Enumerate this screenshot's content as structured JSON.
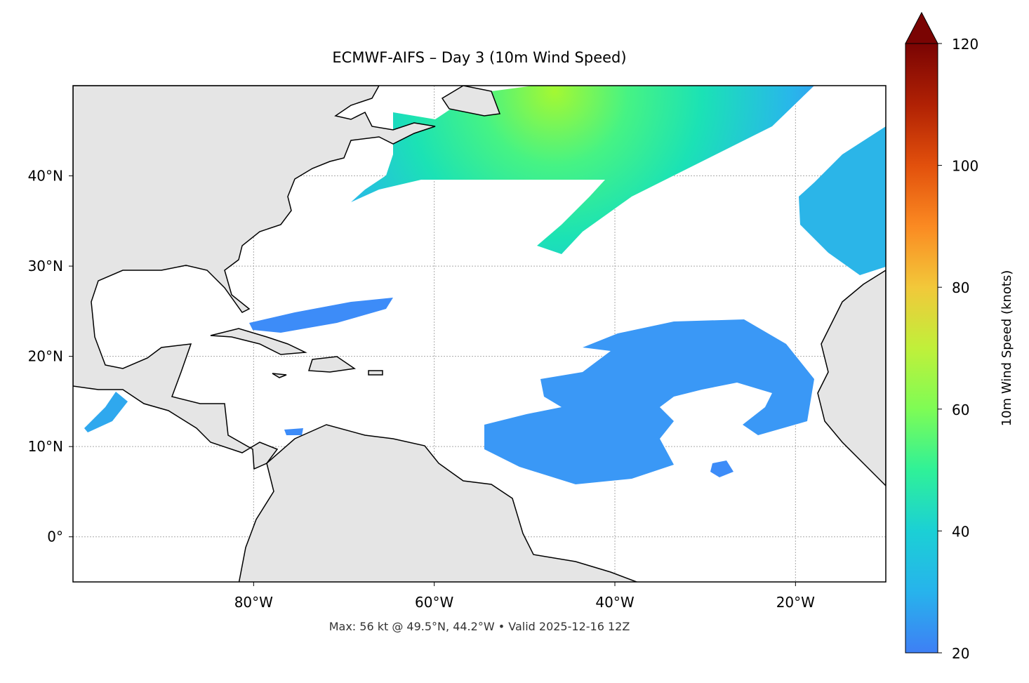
{
  "map": {
    "title": "ECMWF-AIFS – Day 3 (10m Wind Speed)",
    "footer": "Max: 56 kt @ 49.5°N, 44.2°W • Valid 2025-12-16 12Z",
    "xlim": [
      -100,
      -10
    ],
    "ylim": [
      -5,
      50
    ],
    "xticks": [
      {
        "value": -80,
        "label": "80°W"
      },
      {
        "value": -60,
        "label": "60°W"
      },
      {
        "value": -40,
        "label": "40°W"
      },
      {
        "value": -20,
        "label": "20°W"
      }
    ],
    "yticks": [
      {
        "value": 0,
        "label": "0°"
      },
      {
        "value": 10,
        "label": "10°N"
      },
      {
        "value": 20,
        "label": "20°N"
      },
      {
        "value": 30,
        "label": "30°N"
      },
      {
        "value": 40,
        "label": "40°N"
      }
    ],
    "grid": true,
    "colorbar": {
      "label": "10m Wind Speed (knots)",
      "lim": [
        20,
        120
      ],
      "ticks": [
        20,
        40,
        60,
        80,
        100,
        120
      ],
      "extend": "max"
    }
  }
}
